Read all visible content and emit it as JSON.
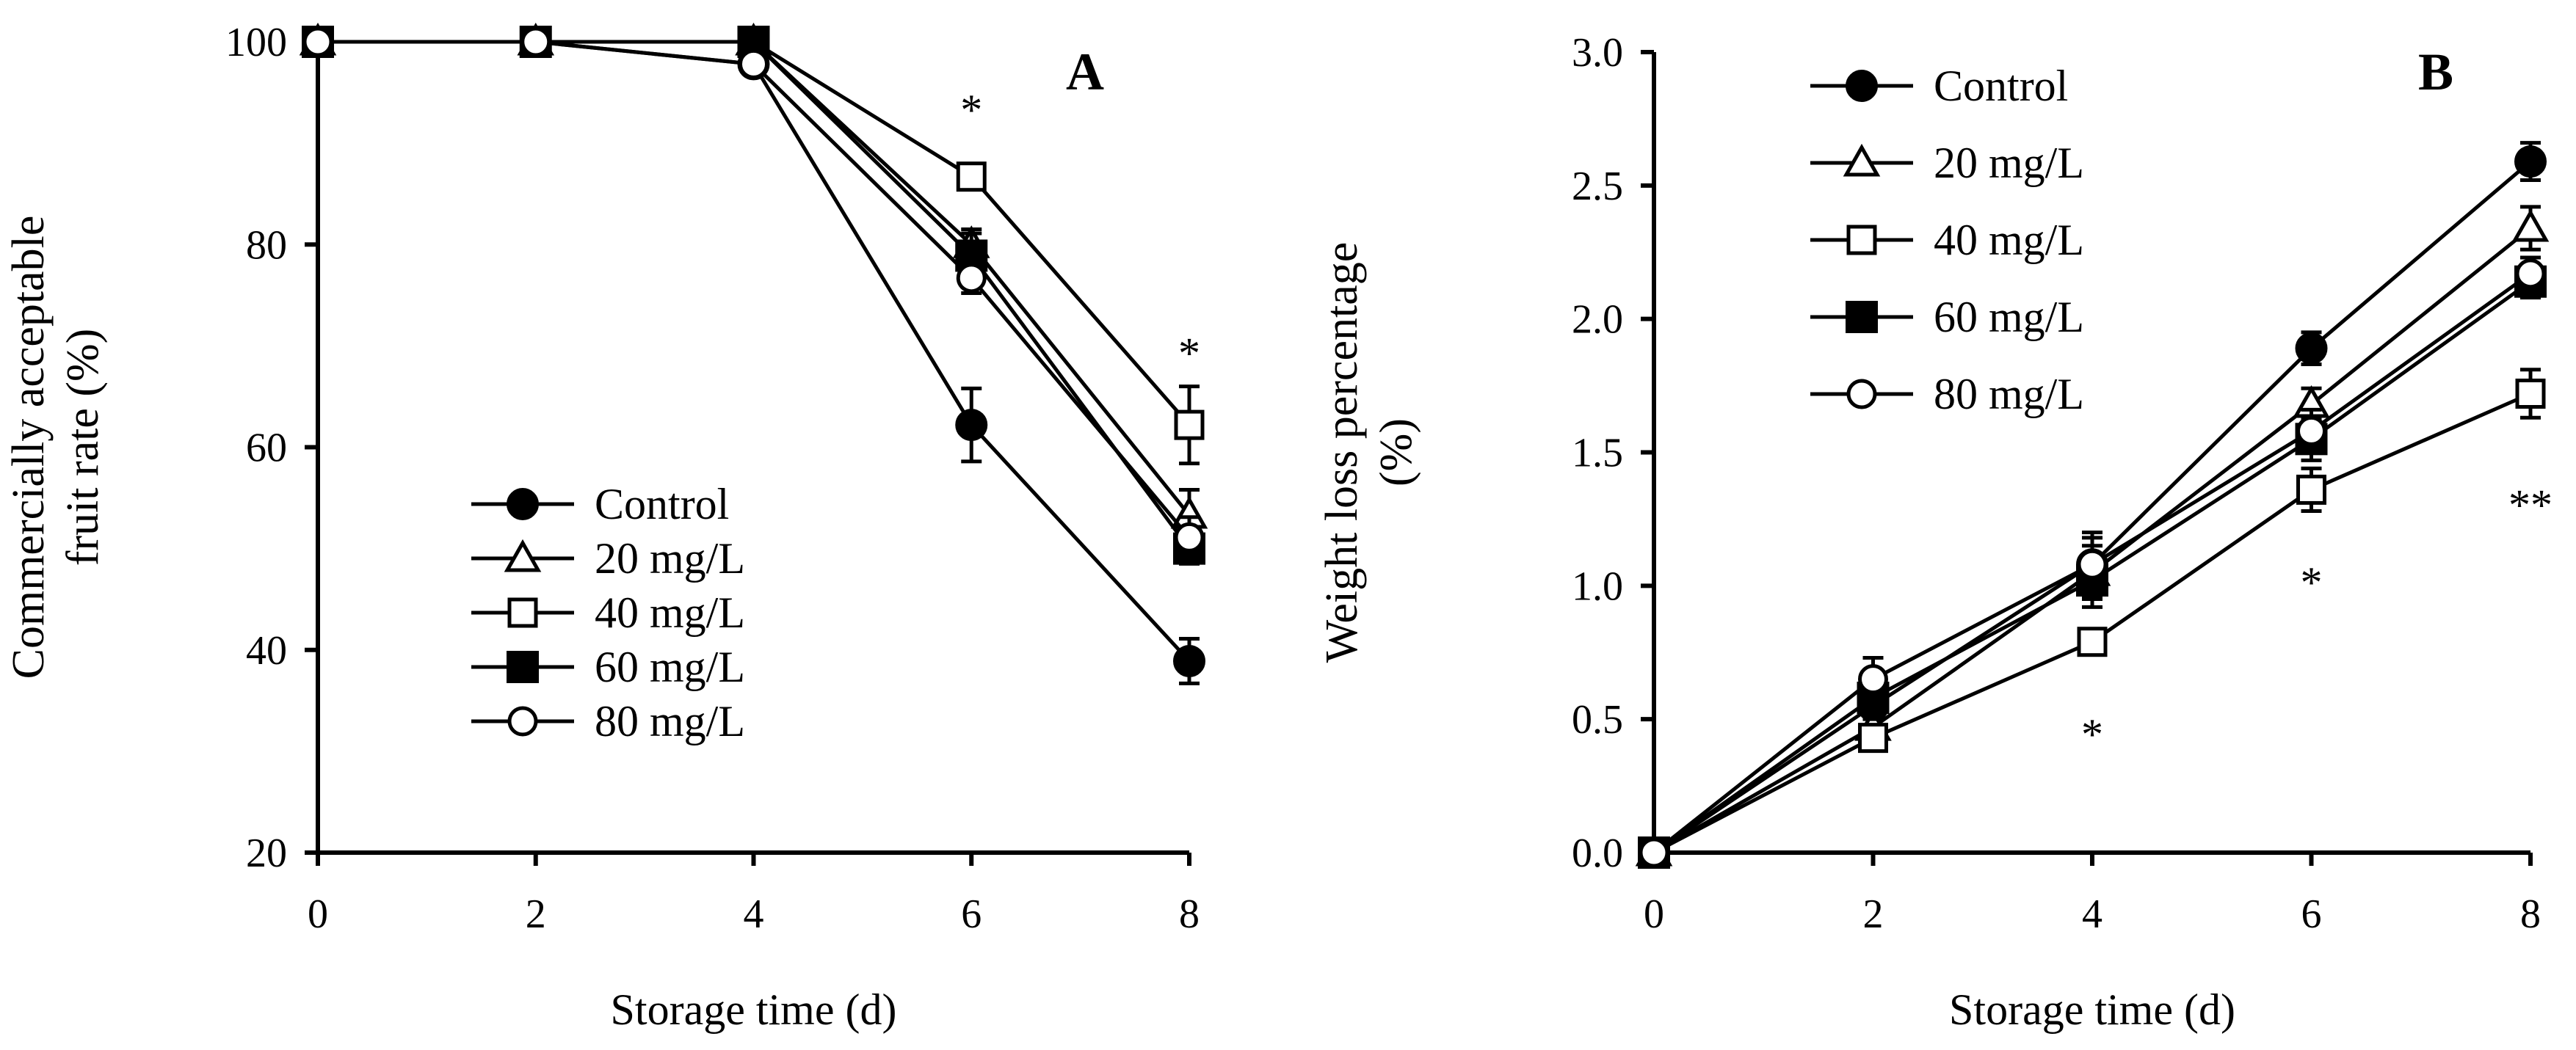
{
  "chart_data": [
    {
      "type": "line",
      "panel_label": "A",
      "xlabel": "Storage time (d)",
      "ylabel_lines": [
        "Commercially acceptable",
        "fruit rate (%)"
      ],
      "x": [
        0,
        2,
        4,
        6,
        8
      ],
      "xlim": [
        0,
        8
      ],
      "ylim": [
        20,
        100
      ],
      "xticks": [
        0,
        2,
        4,
        6,
        8
      ],
      "yticks": [
        20,
        40,
        60,
        80,
        100
      ],
      "legend_position": "bottom-left",
      "series": [
        {
          "name": "Control",
          "marker": "circle-filled",
          "values": [
            100,
            100,
            97.8,
            62.2,
            38.9
          ],
          "errors": [
            0,
            0,
            0.8,
            3.6,
            2.2
          ]
        },
        {
          "name": "20 mg/L",
          "marker": "triangle-open",
          "values": [
            100,
            100,
            100,
            80.0,
            53.3
          ],
          "errors": [
            0,
            0,
            0,
            1.5,
            2.5
          ]
        },
        {
          "name": "40 mg/L",
          "marker": "square-open",
          "values": [
            100,
            100,
            100,
            86.7,
            62.2
          ],
          "errors": [
            0,
            0,
            0,
            1.2,
            3.8
          ]
        },
        {
          "name": "60 mg/L",
          "marker": "square-filled",
          "values": [
            100,
            100,
            100,
            78.9,
            50.0
          ],
          "errors": [
            0,
            0,
            0,
            2.2,
            1.5
          ]
        },
        {
          "name": "80 mg/L",
          "marker": "circle-open",
          "values": [
            100,
            100,
            97.8,
            76.7,
            51.1
          ],
          "errors": [
            0,
            0,
            0.8,
            1.5,
            2.0
          ]
        }
      ],
      "annotations": [
        {
          "text": "*",
          "x": 6,
          "y": 94
        },
        {
          "text": "*",
          "x": 8,
          "y": 70
        }
      ]
    },
    {
      "type": "line",
      "panel_label": "B",
      "xlabel": "Storage time (d)",
      "ylabel_lines": [
        "Weight loss percentage",
        "(%)"
      ],
      "x": [
        0,
        2,
        4,
        6,
        8
      ],
      "xlim": [
        0,
        8
      ],
      "ylim": [
        0,
        3
      ],
      "xticks": [
        0,
        2,
        4,
        6,
        8
      ],
      "yticks": [
        0.0,
        0.5,
        1.0,
        1.5,
        2.0,
        2.5,
        3.0
      ],
      "ytick_labels": [
        "0.0",
        "0.5",
        "1.0",
        "1.5",
        "2.0",
        "2.5",
        "3.0"
      ],
      "legend_position": "top-left",
      "series": [
        {
          "name": "Control",
          "marker": "circle-filled",
          "values": [
            0,
            0.55,
            1.08,
            1.89,
            2.59
          ],
          "errors": [
            0,
            0.08,
            0.1,
            0.06,
            0.07
          ]
        },
        {
          "name": "20 mg/L",
          "marker": "triangle-open",
          "values": [
            0,
            0.47,
            1.05,
            1.68,
            2.34
          ],
          "errors": [
            0,
            0.06,
            0.1,
            0.06,
            0.08
          ]
        },
        {
          "name": "40 mg/L",
          "marker": "square-open",
          "values": [
            0,
            0.43,
            0.79,
            1.36,
            1.72
          ],
          "errors": [
            0,
            0.04,
            0.04,
            0.08,
            0.09
          ]
        },
        {
          "name": "60 mg/L",
          "marker": "square-filled",
          "values": [
            0,
            0.58,
            1.02,
            1.55,
            2.14
          ],
          "errors": [
            0,
            0.08,
            0.1,
            0.08,
            0.06
          ]
        },
        {
          "name": "80 mg/L",
          "marker": "circle-open",
          "values": [
            0,
            0.65,
            1.08,
            1.58,
            2.17
          ],
          "errors": [
            0,
            0.08,
            0.12,
            0.08,
            0.06
          ]
        }
      ],
      "annotations": [
        {
          "text": "*",
          "x": 4,
          "y": 0.47
        },
        {
          "text": "*",
          "x": 6,
          "y": 1.04
        },
        {
          "text": "**",
          "x": 8,
          "y": 1.33
        }
      ]
    }
  ]
}
